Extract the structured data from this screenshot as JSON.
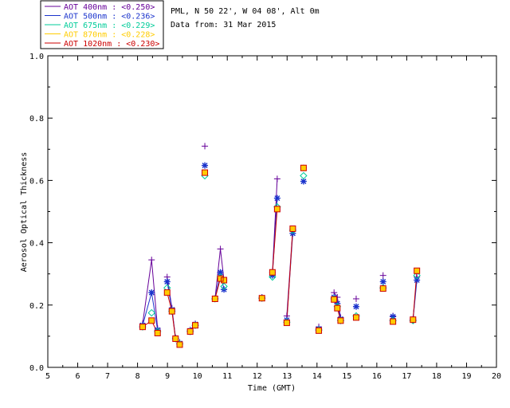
{
  "chart_data": {
    "type": "scatter",
    "info_lines": [
      "PML, N 50 22', W 04 08', Alt 0m",
      "Data from: 31 Mar 2015"
    ],
    "xlabel": "Time (GMT)",
    "ylabel": "Aerosol Optical Thickness",
    "xlim": [
      5,
      20
    ],
    "ylim": [
      0.0,
      1.0
    ],
    "x_ticks": [
      5,
      6,
      7,
      8,
      9,
      10,
      11,
      12,
      13,
      14,
      15,
      16,
      17,
      18,
      19,
      20
    ],
    "x_tick_labels": [
      "5",
      "6",
      "7",
      "8",
      "9",
      "10",
      "11",
      "12",
      "13",
      "14",
      "15",
      "16",
      "17",
      "18",
      "19",
      "20"
    ],
    "y_ticks": [
      0.0,
      0.2,
      0.4,
      0.6,
      0.8,
      1.0
    ],
    "y_tick_labels": [
      "0.0",
      "0.2",
      "0.4",
      "0.6",
      "0.8",
      "1.0"
    ],
    "grid": false,
    "legend_position": "top-left",
    "series": [
      {
        "name": "AOT  400nm : <0.250>",
        "color": "#660099",
        "marker": "plus",
        "points": [
          [
            8.17,
            0.14
          ],
          [
            8.47,
            0.345
          ],
          [
            8.67,
            0.125
          ],
          [
            8.99,
            0.29
          ],
          [
            9.15,
            0.19
          ],
          [
            9.27,
            0.095
          ],
          [
            9.41,
            0.08
          ],
          [
            9.76,
            0.12
          ],
          [
            9.93,
            0.14
          ],
          [
            10.25,
            0.71
          ],
          [
            10.59,
            0.22
          ],
          [
            10.77,
            0.38
          ],
          [
            10.89,
            0.28
          ],
          [
            12.16,
            0.225
          ],
          [
            12.51,
            0.305
          ],
          [
            12.67,
            0.605
          ],
          [
            12.99,
            0.165
          ],
          [
            13.19,
            0.445
          ],
          [
            13.55,
            0.64
          ],
          [
            14.06,
            0.13
          ],
          [
            14.57,
            0.24
          ],
          [
            14.68,
            0.225
          ],
          [
            14.79,
            0.16
          ],
          [
            15.31,
            0.22
          ],
          [
            16.21,
            0.295
          ],
          [
            16.54,
            0.165
          ],
          [
            17.21,
            0.155
          ],
          [
            17.34,
            0.29
          ]
        ],
        "segments": [
          [
            0,
            1
          ],
          [
            1,
            2
          ],
          [
            3,
            4
          ],
          [
            4,
            5
          ],
          [
            5,
            6
          ],
          [
            7,
            8
          ],
          [
            9,
            9
          ],
          [
            10,
            11
          ],
          [
            11,
            12
          ],
          [
            14,
            15
          ],
          [
            16,
            17
          ],
          [
            20,
            21
          ],
          [
            21,
            22
          ],
          [
            26,
            27
          ]
        ]
      },
      {
        "name": "AOT  500nm : <0.236>",
        "color": "#1a33cc",
        "marker": "asterisk",
        "points": [
          [
            8.17,
            0.135
          ],
          [
            8.47,
            0.24
          ],
          [
            8.67,
            0.12
          ],
          [
            8.99,
            0.275
          ],
          [
            9.15,
            0.185
          ],
          [
            9.27,
            0.093
          ],
          [
            9.41,
            0.077
          ],
          [
            9.76,
            0.118
          ],
          [
            9.93,
            0.138
          ],
          [
            10.25,
            0.648
          ],
          [
            10.59,
            0.22
          ],
          [
            10.77,
            0.305
          ],
          [
            10.89,
            0.25
          ],
          [
            12.16,
            0.223
          ],
          [
            12.51,
            0.295
          ],
          [
            12.67,
            0.543
          ],
          [
            12.99,
            0.152
          ],
          [
            13.19,
            0.43
          ],
          [
            13.55,
            0.597
          ],
          [
            14.06,
            0.123
          ],
          [
            14.57,
            0.225
          ],
          [
            14.68,
            0.205
          ],
          [
            14.79,
            0.155
          ],
          [
            15.31,
            0.195
          ],
          [
            16.21,
            0.275
          ],
          [
            16.54,
            0.163
          ],
          [
            17.21,
            0.152
          ],
          [
            17.34,
            0.28
          ]
        ],
        "segments": [
          [
            0,
            1
          ],
          [
            1,
            2
          ],
          [
            3,
            4
          ],
          [
            4,
            5
          ],
          [
            5,
            6
          ],
          [
            7,
            8
          ],
          [
            10,
            11
          ],
          [
            11,
            12
          ],
          [
            14,
            15
          ],
          [
            16,
            17
          ],
          [
            20,
            21
          ],
          [
            21,
            22
          ],
          [
            26,
            27
          ]
        ]
      },
      {
        "name": "AOT  675nm : <0.229>",
        "color": "#00cc99",
        "marker": "diamond",
        "points": [
          [
            8.17,
            0.13
          ],
          [
            8.47,
            0.175
          ],
          [
            8.67,
            0.115
          ],
          [
            8.99,
            0.255
          ],
          [
            9.15,
            0.18
          ],
          [
            9.27,
            0.092
          ],
          [
            9.41,
            0.075
          ],
          [
            9.76,
            0.115
          ],
          [
            9.93,
            0.135
          ],
          [
            10.25,
            0.615
          ],
          [
            10.59,
            0.22
          ],
          [
            10.77,
            0.29
          ],
          [
            10.89,
            0.26
          ],
          [
            12.16,
            0.222
          ],
          [
            12.51,
            0.29
          ],
          [
            12.67,
            0.515
          ],
          [
            12.99,
            0.145
          ],
          [
            13.19,
            0.44
          ],
          [
            13.55,
            0.615
          ],
          [
            14.06,
            0.12
          ],
          [
            14.57,
            0.22
          ],
          [
            14.68,
            0.195
          ],
          [
            14.79,
            0.15
          ],
          [
            15.31,
            0.165
          ],
          [
            16.21,
            0.255
          ],
          [
            16.54,
            0.15
          ],
          [
            17.21,
            0.15
          ],
          [
            17.34,
            0.295
          ]
        ],
        "segments": []
      },
      {
        "name": "AOT  870nm : <0.228>",
        "color": "#ffcc00",
        "marker": "square",
        "points": [
          [
            8.17,
            0.13
          ],
          [
            8.47,
            0.15
          ],
          [
            8.67,
            0.11
          ],
          [
            8.99,
            0.24
          ],
          [
            9.15,
            0.18
          ],
          [
            9.27,
            0.092
          ],
          [
            9.41,
            0.073
          ],
          [
            9.76,
            0.115
          ],
          [
            9.93,
            0.135
          ],
          [
            10.25,
            0.625
          ],
          [
            10.59,
            0.22
          ],
          [
            10.77,
            0.285
          ],
          [
            10.89,
            0.28
          ],
          [
            12.16,
            0.222
          ],
          [
            12.51,
            0.305
          ],
          [
            12.67,
            0.508
          ],
          [
            12.99,
            0.143
          ],
          [
            13.19,
            0.445
          ],
          [
            13.55,
            0.64
          ],
          [
            14.06,
            0.118
          ],
          [
            14.57,
            0.218
          ],
          [
            14.68,
            0.19
          ],
          [
            14.79,
            0.15
          ],
          [
            15.31,
            0.16
          ],
          [
            16.21,
            0.253
          ],
          [
            16.54,
            0.147
          ],
          [
            17.21,
            0.153
          ],
          [
            17.34,
            0.31
          ]
        ],
        "segments": []
      },
      {
        "name": "AOT 1020nm : <0.230>",
        "color": "#cc0000",
        "marker": "square",
        "points": [
          [
            8.17,
            0.13
          ],
          [
            8.47,
            0.15
          ],
          [
            8.67,
            0.11
          ],
          [
            8.99,
            0.24
          ],
          [
            9.15,
            0.18
          ],
          [
            9.27,
            0.092
          ],
          [
            9.41,
            0.073
          ],
          [
            9.76,
            0.115
          ],
          [
            9.93,
            0.135
          ],
          [
            10.25,
            0.625
          ],
          [
            10.59,
            0.22
          ],
          [
            10.77,
            0.285
          ],
          [
            10.89,
            0.28
          ],
          [
            12.16,
            0.222
          ],
          [
            12.51,
            0.305
          ],
          [
            12.67,
            0.508
          ],
          [
            12.99,
            0.143
          ],
          [
            13.19,
            0.445
          ],
          [
            13.55,
            0.64
          ],
          [
            14.06,
            0.118
          ],
          [
            14.57,
            0.218
          ],
          [
            14.68,
            0.19
          ],
          [
            14.79,
            0.15
          ],
          [
            15.31,
            0.16
          ],
          [
            16.21,
            0.253
          ],
          [
            16.54,
            0.147
          ],
          [
            17.21,
            0.153
          ],
          [
            17.34,
            0.31
          ]
        ],
        "segments": [
          [
            0,
            1
          ],
          [
            1,
            2
          ],
          [
            3,
            4
          ],
          [
            4,
            5
          ],
          [
            5,
            6
          ],
          [
            7,
            8
          ],
          [
            10,
            11
          ],
          [
            11,
            12
          ],
          [
            14,
            15
          ],
          [
            16,
            17
          ],
          [
            20,
            21
          ],
          [
            21,
            22
          ],
          [
            26,
            27
          ]
        ]
      }
    ]
  }
}
